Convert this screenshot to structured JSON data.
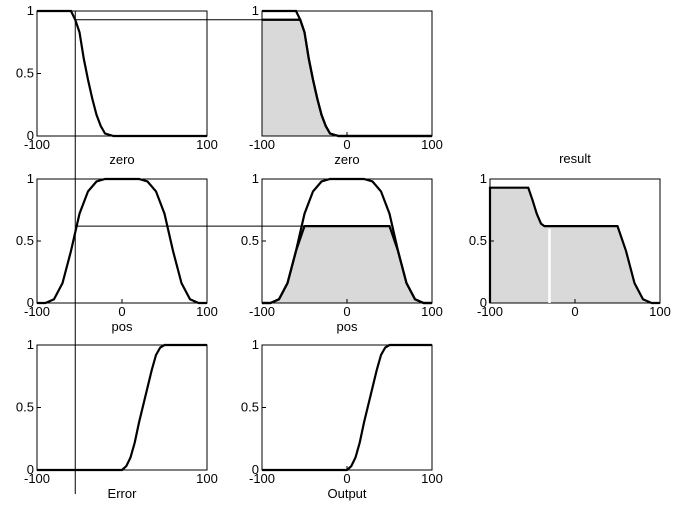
{
  "figure": {
    "type": "fuzzy-inference-diagram",
    "title_result": "result",
    "input_crisp_value": -55,
    "panels": [
      {
        "id": "error-zero",
        "label": "zero",
        "x_range": [
          -100,
          100
        ],
        "y_range": [
          0,
          1
        ],
        "x_ticks": [
          "-100",
          "100"
        ],
        "y_ticks": [
          "0",
          "0.5",
          "1"
        ],
        "membership": [
          [
            -100,
            1
          ],
          [
            -60,
            1
          ],
          [
            -55,
            0.93
          ],
          [
            -50,
            0.83
          ],
          [
            -45,
            0.62
          ],
          [
            -40,
            0.45
          ],
          [
            -35,
            0.3
          ],
          [
            -30,
            0.17
          ],
          [
            -25,
            0.08
          ],
          [
            -20,
            0.02
          ],
          [
            -10,
            0
          ],
          [
            100,
            0
          ]
        ],
        "filled": false
      },
      {
        "id": "output-zero",
        "label": "zero",
        "x_range": [
          -100,
          100
        ],
        "y_range": [
          0,
          1
        ],
        "x_ticks": [
          "-100",
          "0",
          "100"
        ],
        "y_ticks": [
          "1"
        ],
        "membership": [
          [
            -100,
            1
          ],
          [
            -60,
            1
          ],
          [
            -55,
            0.93
          ],
          [
            -50,
            0.83
          ],
          [
            -45,
            0.62
          ],
          [
            -40,
            0.45
          ],
          [
            -35,
            0.3
          ],
          [
            -30,
            0.17
          ],
          [
            -25,
            0.08
          ],
          [
            -20,
            0.02
          ],
          [
            -10,
            0
          ],
          [
            100,
            0
          ]
        ],
        "clip_level": 0.93,
        "filled": true
      },
      {
        "id": "error-pos",
        "label": "pos",
        "x_range": [
          -100,
          100
        ],
        "y_range": [
          0,
          1
        ],
        "x_ticks": [
          "-100",
          "0",
          "100"
        ],
        "y_ticks": [
          "0",
          "0.5",
          "1"
        ],
        "membership": [
          [
            -100,
            0
          ],
          [
            -90,
            0
          ],
          [
            -80,
            0.03
          ],
          [
            -70,
            0.16
          ],
          [
            -60,
            0.42
          ],
          [
            -50,
            0.72
          ],
          [
            -40,
            0.9
          ],
          [
            -30,
            0.98
          ],
          [
            -20,
            1
          ],
          [
            20,
            1
          ],
          [
            30,
            0.98
          ],
          [
            40,
            0.9
          ],
          [
            50,
            0.72
          ],
          [
            60,
            0.42
          ],
          [
            70,
            0.16
          ],
          [
            80,
            0.03
          ],
          [
            90,
            0
          ],
          [
            100,
            0
          ]
        ],
        "filled": false
      },
      {
        "id": "output-pos",
        "label": "pos",
        "x_range": [
          -100,
          100
        ],
        "y_range": [
          0,
          1
        ],
        "x_ticks": [
          "-100",
          "0",
          "100"
        ],
        "y_ticks": [
          "0.5",
          "1"
        ],
        "membership": [
          [
            -100,
            0
          ],
          [
            -90,
            0
          ],
          [
            -80,
            0.03
          ],
          [
            -70,
            0.16
          ],
          [
            -60,
            0.42
          ],
          [
            -50,
            0.72
          ],
          [
            -40,
            0.9
          ],
          [
            -30,
            0.98
          ],
          [
            -20,
            1
          ],
          [
            20,
            1
          ],
          [
            30,
            0.98
          ],
          [
            40,
            0.9
          ],
          [
            50,
            0.72
          ],
          [
            60,
            0.42
          ],
          [
            70,
            0.16
          ],
          [
            80,
            0.03
          ],
          [
            90,
            0
          ],
          [
            100,
            0
          ]
        ],
        "clip_level": 0.62,
        "filled": true
      },
      {
        "id": "error-pos-2",
        "label": "Error",
        "x_range": [
          -100,
          100
        ],
        "y_range": [
          0,
          1
        ],
        "x_ticks": [
          "-100",
          "100"
        ],
        "y_ticks": [
          "0",
          "0.5",
          "1"
        ],
        "membership": [
          [
            -100,
            0
          ],
          [
            0,
            0
          ],
          [
            5,
            0.03
          ],
          [
            10,
            0.1
          ],
          [
            15,
            0.22
          ],
          [
            20,
            0.38
          ],
          [
            25,
            0.52
          ],
          [
            30,
            0.66
          ],
          [
            35,
            0.8
          ],
          [
            40,
            0.92
          ],
          [
            45,
            0.98
          ],
          [
            50,
            1
          ],
          [
            100,
            1
          ]
        ],
        "filled": false
      },
      {
        "id": "output-pos-2",
        "label": "Output",
        "x_range": [
          -100,
          100
        ],
        "y_range": [
          0,
          1
        ],
        "x_ticks": [
          "-100",
          "0",
          "100"
        ],
        "y_ticks": [
          "0",
          "0.5",
          "1"
        ],
        "membership": [
          [
            -100,
            0
          ],
          [
            0,
            0
          ],
          [
            5,
            0.03
          ],
          [
            10,
            0.1
          ],
          [
            15,
            0.22
          ],
          [
            20,
            0.38
          ],
          [
            25,
            0.52
          ],
          [
            30,
            0.66
          ],
          [
            35,
            0.8
          ],
          [
            40,
            0.92
          ],
          [
            45,
            0.98
          ],
          [
            50,
            1
          ],
          [
            100,
            1
          ]
        ],
        "filled": false
      },
      {
        "id": "result",
        "label": "result",
        "x_range": [
          -100,
          100
        ],
        "y_range": [
          0,
          1
        ],
        "x_ticks": [
          "-100",
          "0",
          "100"
        ],
        "y_ticks": [
          "0",
          "0.5",
          "1"
        ],
        "membership": [
          [
            -100,
            0
          ],
          [
            -100,
            0.93
          ],
          [
            -55,
            0.93
          ],
          [
            -50,
            0.83
          ],
          [
            -45,
            0.72
          ],
          [
            -40,
            0.64
          ],
          [
            -36,
            0.62
          ],
          [
            50,
            0.62
          ],
          [
            60,
            0.42
          ],
          [
            70,
            0.16
          ],
          [
            80,
            0.03
          ],
          [
            90,
            0
          ],
          [
            100,
            0
          ]
        ],
        "defuzzified_value": -30,
        "filled": true,
        "title_above": true
      }
    ],
    "colors": {
      "line": "#000000",
      "fill": "#d9d9d9",
      "defuzz_marker": "#ffffff"
    }
  }
}
